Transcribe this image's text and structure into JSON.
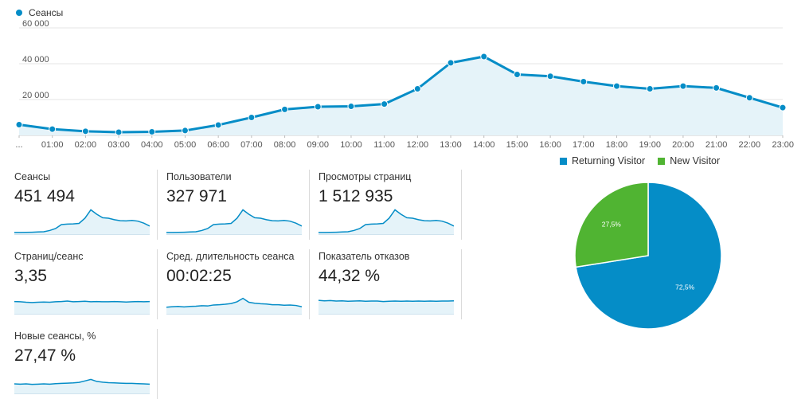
{
  "legend": {
    "label": "Сеансы",
    "color": "#058dc7"
  },
  "chart_data": [
    {
      "type": "area",
      "series": [
        {
          "name": "Сеансы",
          "color": "#058dc7",
          "values": [
            6000,
            3500,
            2300,
            1800,
            2000,
            2700,
            5800,
            10000,
            14500,
            16000,
            16200,
            17500,
            26000,
            40500,
            44000,
            34000,
            33000,
            30000,
            27500,
            26000,
            27500,
            26500,
            21000,
            15500
          ]
        }
      ],
      "categories": [
        "...",
        "01:00",
        "02:00",
        "03:00",
        "04:00",
        "05:00",
        "06:00",
        "07:00",
        "08:00",
        "09:00",
        "10:00",
        "11:00",
        "12:00",
        "13:00",
        "14:00",
        "15:00",
        "16:00",
        "17:00",
        "18:00",
        "19:00",
        "20:00",
        "21:00",
        "22:00",
        "23:00"
      ],
      "yticks": [
        "20 000",
        "40 000",
        "60 000"
      ],
      "ylim": [
        0,
        60000
      ],
      "grid": true
    },
    {
      "type": "pie",
      "legend_position": "top",
      "slices": [
        {
          "name": "Returning Visitor",
          "value": 72.5,
          "label": "72,5%",
          "color": "#058dc7"
        },
        {
          "name": "New Visitor",
          "value": 27.5,
          "label": "27,5%",
          "color": "#50b432"
        }
      ]
    }
  ],
  "metrics": [
    {
      "label": "Сеансы",
      "value": "451 494",
      "spark": [
        1.0,
        1.0,
        1.05,
        1.1,
        1.2,
        1.3,
        1.8,
        2.6,
        4.2,
        4.4,
        4.5,
        4.7,
        6.8,
        10.2,
        8.4,
        7.0,
        6.8,
        6.2,
        5.8,
        5.7,
        5.9,
        5.6,
        4.8,
        3.6
      ]
    },
    {
      "label": "Пользователи",
      "value": "327 971",
      "spark": [
        1.0,
        1.0,
        1.05,
        1.1,
        1.2,
        1.3,
        1.8,
        2.6,
        4.2,
        4.4,
        4.5,
        4.7,
        6.8,
        10.2,
        8.4,
        7.0,
        6.8,
        6.2,
        5.8,
        5.7,
        5.9,
        5.6,
        4.8,
        3.6
      ]
    },
    {
      "label": "Просмотры страниц",
      "value": "1 512 935",
      "spark": [
        1.0,
        1.0,
        1.05,
        1.1,
        1.2,
        1.3,
        1.8,
        2.6,
        4.2,
        4.4,
        4.5,
        4.7,
        6.8,
        10.2,
        8.4,
        7.0,
        6.8,
        6.2,
        5.8,
        5.7,
        5.9,
        5.6,
        4.8,
        3.6
      ]
    },
    {
      "label": "Страниц/сеанс",
      "value": "3,35",
      "spark": [
        5.3,
        5.2,
        5.0,
        4.9,
        5.0,
        5.1,
        5.0,
        5.2,
        5.3,
        5.5,
        5.2,
        5.3,
        5.4,
        5.2,
        5.3,
        5.2,
        5.2,
        5.3,
        5.2,
        5.1,
        5.2,
        5.3,
        5.2,
        5.3
      ]
    },
    {
      "label": "Сред. длительность сеанса",
      "value": "00:02:25",
      "spark": [
        3.0,
        3.2,
        3.3,
        3.1,
        3.3,
        3.4,
        3.6,
        3.5,
        3.9,
        4.0,
        4.2,
        4.5,
        5.2,
        6.6,
        5.0,
        4.6,
        4.4,
        4.3,
        4.0,
        4.0,
        3.8,
        3.9,
        3.7,
        3.2
      ]
    },
    {
      "label": "Показатель отказов",
      "value": "44,32 %",
      "spark": [
        5.8,
        5.6,
        5.7,
        5.5,
        5.6,
        5.4,
        5.5,
        5.6,
        5.4,
        5.5,
        5.5,
        5.3,
        5.4,
        5.5,
        5.4,
        5.5,
        5.4,
        5.5,
        5.4,
        5.5,
        5.4,
        5.5,
        5.5,
        5.6
      ]
    },
    {
      "label": "Новые сеансы, %",
      "value": "27,47 %",
      "spark": [
        4.2,
        4.1,
        4.2,
        4.0,
        4.1,
        4.2,
        4.1,
        4.3,
        4.4,
        4.5,
        4.6,
        4.8,
        5.4,
        6.0,
        5.2,
        4.9,
        4.7,
        4.6,
        4.5,
        4.4,
        4.4,
        4.3,
        4.2,
        4.1
      ]
    }
  ]
}
